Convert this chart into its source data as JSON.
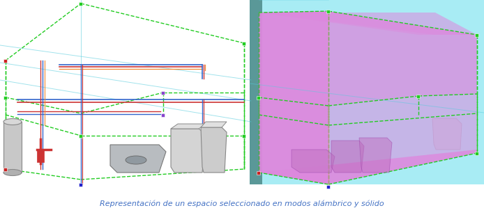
{
  "background_color": "#ffffff",
  "caption": "Representación de un espacio seleccionado en modos alámbrico y sólido",
  "caption_color": "#4472c4",
  "caption_fontsize": 8.0,
  "caption_style": "italic",
  "green_sq": "#22cc22",
  "red_sq": "#cc2222",
  "blue_sq": "#2222cc",
  "purple_sq": "#8844cc",
  "dashed_green": "#22cc22",
  "solid_fill": "#dd88dd",
  "cyan_bg": "#a8ecf4",
  "teal_strip": "#5a9898",
  "blue_pipe": "#3366cc",
  "red_pipe": "#cc3333",
  "orange_pipe": "#ee8833",
  "gray_light": "#d4d4d4",
  "gray_mid": "#aaaaaa",
  "gray_dark": "#888888"
}
